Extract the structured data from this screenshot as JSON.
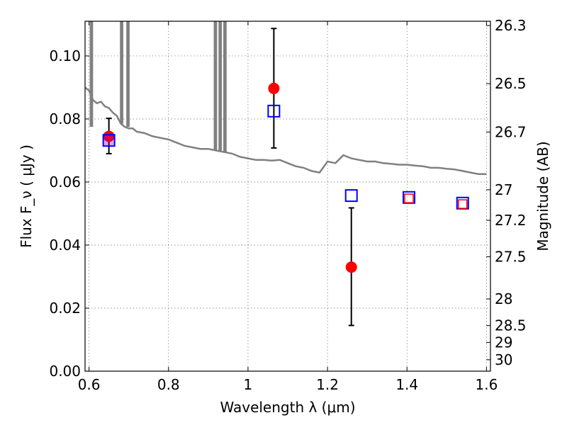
{
  "chart_data": {
    "type": "scatter",
    "xlabel": "Wavelength  λ (μm)",
    "ylabel": "Flux  F_ν  ( μJy )",
    "ylabel2": "Magnitude (AB)",
    "xlim": [
      0.59,
      1.61
    ],
    "ylim": [
      0.0,
      0.111
    ],
    "grid": true,
    "x_ticks": [
      "0.6",
      "0.8",
      "1",
      "1.2",
      "1.4",
      "1.6"
    ],
    "x_tick_values": [
      0.6,
      0.8,
      1.0,
      1.2,
      1.4,
      1.6
    ],
    "y_ticks": [
      "0.00",
      "0.02",
      "0.04",
      "0.06",
      "0.08",
      "0.10"
    ],
    "y_tick_values": [
      0.0,
      0.02,
      0.04,
      0.06,
      0.08,
      0.1
    ],
    "mag_ticks": [
      "26.3",
      "26.5",
      "26.7",
      "27",
      "27.2",
      "27.5",
      "28",
      "28.5",
      "29",
      "30"
    ],
    "mag_tick_values": [
      26.3,
      26.5,
      26.7,
      27.0,
      27.2,
      27.5,
      28.0,
      28.5,
      29.0,
      30.0
    ],
    "series": [
      {
        "kind": "model-spectrum",
        "color": "#808080",
        "x": [
          0.59,
          0.6,
          0.61,
          0.62,
          0.63,
          0.64,
          0.65,
          0.66,
          0.67,
          0.68,
          0.69,
          0.7,
          0.71,
          0.72,
          0.74,
          0.76,
          0.78,
          0.8,
          0.82,
          0.84,
          0.86,
          0.88,
          0.9,
          0.92,
          0.94,
          0.96,
          0.98,
          1.0,
          1.02,
          1.04,
          1.06,
          1.08,
          1.1,
          1.12,
          1.14,
          1.16,
          1.18,
          1.2,
          1.22,
          1.24,
          1.26,
          1.28,
          1.3,
          1.32,
          1.34,
          1.36,
          1.38,
          1.4,
          1.42,
          1.44,
          1.46,
          1.48,
          1.5,
          1.52,
          1.54,
          1.56,
          1.58,
          1.6
        ],
        "y": [
          0.09,
          0.089,
          0.086,
          0.085,
          0.0855,
          0.084,
          0.0835,
          0.082,
          0.081,
          0.0785,
          0.0775,
          0.077,
          0.077,
          0.076,
          0.0755,
          0.0745,
          0.074,
          0.0735,
          0.0725,
          0.0715,
          0.071,
          0.0705,
          0.0705,
          0.07,
          0.0695,
          0.069,
          0.068,
          0.0675,
          0.067,
          0.067,
          0.0668,
          0.067,
          0.066,
          0.065,
          0.0645,
          0.0635,
          0.063,
          0.0665,
          0.066,
          0.0685,
          0.0675,
          0.067,
          0.0665,
          0.0665,
          0.066,
          0.0658,
          0.0655,
          0.0655,
          0.0652,
          0.065,
          0.0645,
          0.0645,
          0.0642,
          0.064,
          0.0635,
          0.063,
          0.0625,
          0.0625
        ],
        "spikes": [
          {
            "x": 0.604,
            "y_top": 0.111,
            "y_base": 0.0775
          },
          {
            "x": 0.608,
            "y_top": 0.111,
            "y_base": 0.0775
          },
          {
            "x": 0.68,
            "y_top": 0.111,
            "y_base": 0.0785
          },
          {
            "x": 0.684,
            "y_top": 0.111,
            "y_base": 0.0785
          },
          {
            "x": 0.696,
            "y_top": 0.111,
            "y_base": 0.0775
          },
          {
            "x": 0.7,
            "y_top": 0.111,
            "y_base": 0.0775
          },
          {
            "x": 0.916,
            "y_top": 0.111,
            "y_base": 0.07
          },
          {
            "x": 0.92,
            "y_top": 0.111,
            "y_base": 0.07
          },
          {
            "x": 0.928,
            "y_top": 0.111,
            "y_base": 0.07
          },
          {
            "x": 0.932,
            "y_top": 0.111,
            "y_base": 0.07
          },
          {
            "x": 0.94,
            "y_top": 0.111,
            "y_base": 0.0695
          },
          {
            "x": 0.944,
            "y_top": 0.111,
            "y_base": 0.0695
          }
        ]
      },
      {
        "kind": "observed-photometry",
        "color": "#ff0000",
        "x": [
          0.65,
          1.065,
          1.26
        ],
        "y": [
          0.0745,
          0.0897,
          0.033
        ],
        "err_low": [
          0.069,
          0.0708,
          0.0145
        ],
        "err_high": [
          0.0802,
          0.1087,
          0.0518
        ]
      },
      {
        "kind": "model-photometry-blue",
        "color": "#0000ff",
        "x": [
          0.65,
          1.065,
          1.26,
          1.405,
          1.54
        ],
        "y": [
          0.0732,
          0.0825,
          0.0557,
          0.0551,
          0.0533
        ]
      },
      {
        "kind": "model-photometry-red",
        "color": "#ff0000",
        "x": [
          1.405,
          1.54
        ],
        "y": [
          0.0548,
          0.053
        ]
      }
    ]
  }
}
